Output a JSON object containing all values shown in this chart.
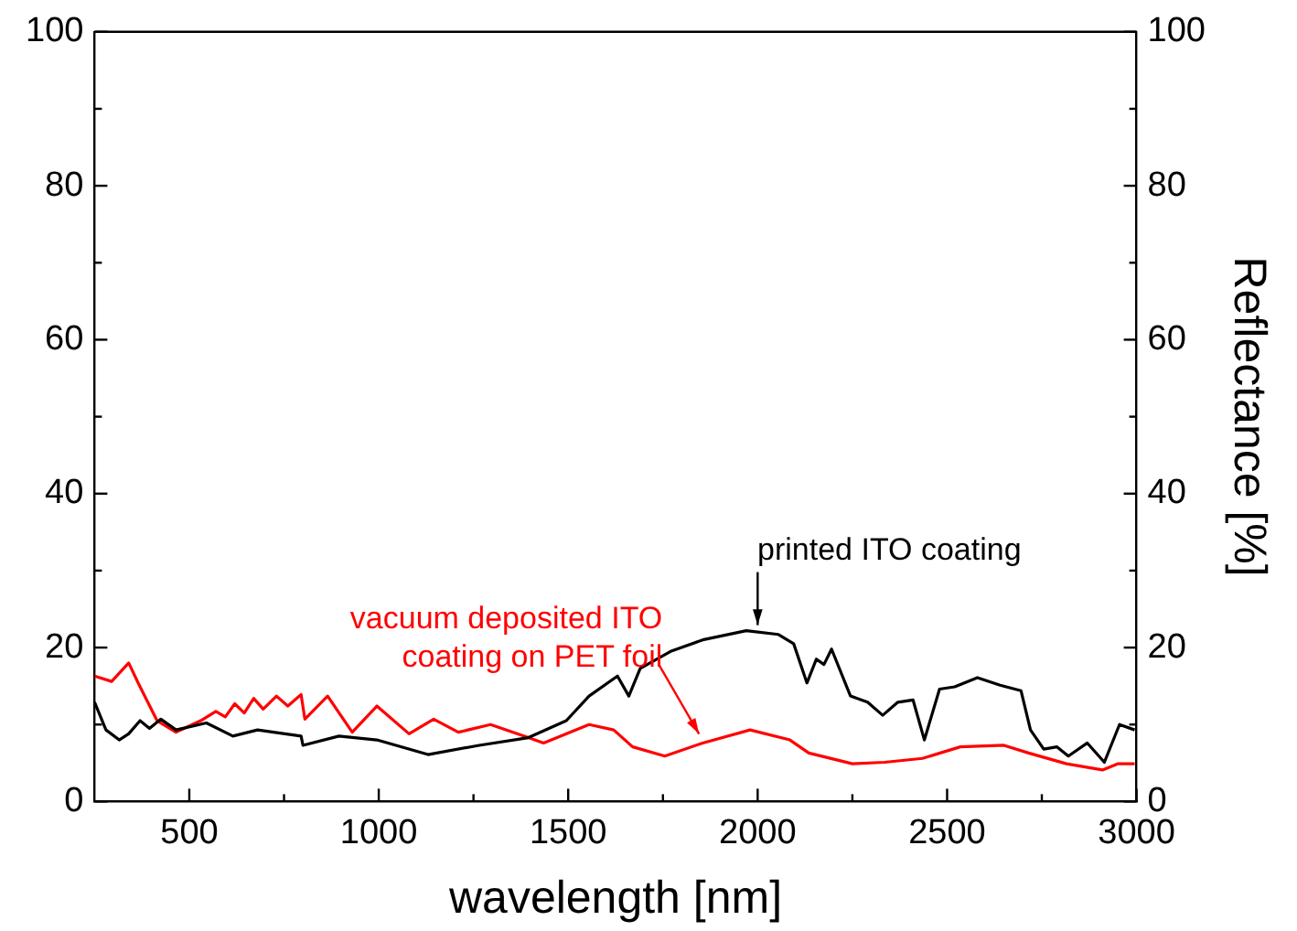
{
  "chart_data": {
    "type": "line",
    "xlabel": "wavelength [nm]",
    "y2label": "Reflectance [%]",
    "xlim": [
      250,
      3000
    ],
    "xticks": [
      500,
      {
        "value": 750,
        "label": null
      },
      1000,
      {
        "value": 1250,
        "label": null
      },
      1500,
      {
        "value": 1750,
        "label": null
      },
      2000,
      {
        "value": 2250,
        "label": null
      },
      2500,
      {
        "value": 2750,
        "label": null
      },
      3000
    ],
    "ylim": [
      0,
      100
    ],
    "yticks": [
      0,
      {
        "value": 10,
        "label": null
      },
      20,
      {
        "value": 30,
        "label": null
      },
      40,
      {
        "value": 50,
        "label": null
      },
      60,
      {
        "value": 70,
        "label": null
      },
      80,
      {
        "value": 90,
        "label": null
      },
      100
    ],
    "y2lim": [
      0,
      100
    ],
    "y2ticks": [
      0,
      {
        "value": 10,
        "label": null
      },
      20,
      {
        "value": 30,
        "label": null
      },
      40,
      {
        "value": 50,
        "label": null
      },
      60,
      {
        "value": 70,
        "label": null
      },
      80,
      {
        "value": 90,
        "label": null
      },
      100
    ],
    "grid": false,
    "legend": false,
    "marker": "none",
    "line_style": "solid",
    "series": [
      {
        "color": "#000000",
        "x": [
          250,
          280,
          315,
          340,
          370,
          395,
          425,
          465,
          545,
          615,
          680,
          795,
          800,
          895,
          995,
          1130,
          1265,
          1395,
          1495,
          1555,
          1630,
          1660,
          1690,
          1770,
          1855,
          1970,
          2055,
          2095,
          2130,
          2155,
          2175,
          2195,
          2245,
          2290,
          2330,
          2370,
          2410,
          2440,
          2480,
          2520,
          2580,
          2640,
          2695,
          2720,
          2755,
          2790,
          2820,
          2870,
          2915,
          2955,
          2995
        ],
        "values": [
          12.9,
          9.3,
          8.0,
          8.8,
          10.5,
          9.5,
          10.7,
          9.3,
          10.2,
          8.5,
          9.3,
          8.5,
          7.3,
          8.5,
          8.0,
          6.1,
          7.3,
          8.3,
          10.5,
          13.7,
          16.3,
          13.7,
          17.3,
          19.5,
          21.0,
          22.2,
          21.7,
          20.5,
          15.4,
          18.5,
          17.8,
          19.8,
          13.7,
          12.9,
          11.2,
          12.9,
          13.2,
          8.0,
          14.6,
          14.9,
          16.1,
          15.1,
          14.4,
          9.3,
          6.8,
          7.1,
          5.9,
          7.6,
          5.1,
          10.0,
          9.3
        ]
      },
      {
        "color": "#ff0000",
        "x": [
          250,
          295,
          340,
          365,
          415,
          465,
          530,
          570,
          595,
          620,
          645,
          670,
          695,
          730,
          760,
          795,
          805,
          865,
          930,
          995,
          1080,
          1145,
          1210,
          1295,
          1395,
          1435,
          1555,
          1620,
          1670,
          1755,
          1855,
          1980,
          2085,
          2135,
          2250,
          2335,
          2435,
          2535,
          2650,
          2715,
          2815,
          2910,
          2950,
          2995
        ],
        "values": [
          16.3,
          15.6,
          18.0,
          15.4,
          10.5,
          9.0,
          10.5,
          11.7,
          11.0,
          12.7,
          11.5,
          13.4,
          12.0,
          13.7,
          12.4,
          13.9,
          10.7,
          13.7,
          9.0,
          12.4,
          8.8,
          10.7,
          9.0,
          10.0,
          8.3,
          7.6,
          10.0,
          9.3,
          7.1,
          5.9,
          7.6,
          9.3,
          8.0,
          6.3,
          4.9,
          5.1,
          5.6,
          7.1,
          7.3,
          6.3,
          4.9,
          4.1,
          4.9,
          4.9
        ]
      }
    ],
    "annotations": [
      {
        "text": "printed ITO coating",
        "x": 2000,
        "y": 22.2
      },
      {
        "text": "vacuum deposited ITO\ncoating on PET foil",
        "x": 1855,
        "y": 8.3
      }
    ]
  }
}
